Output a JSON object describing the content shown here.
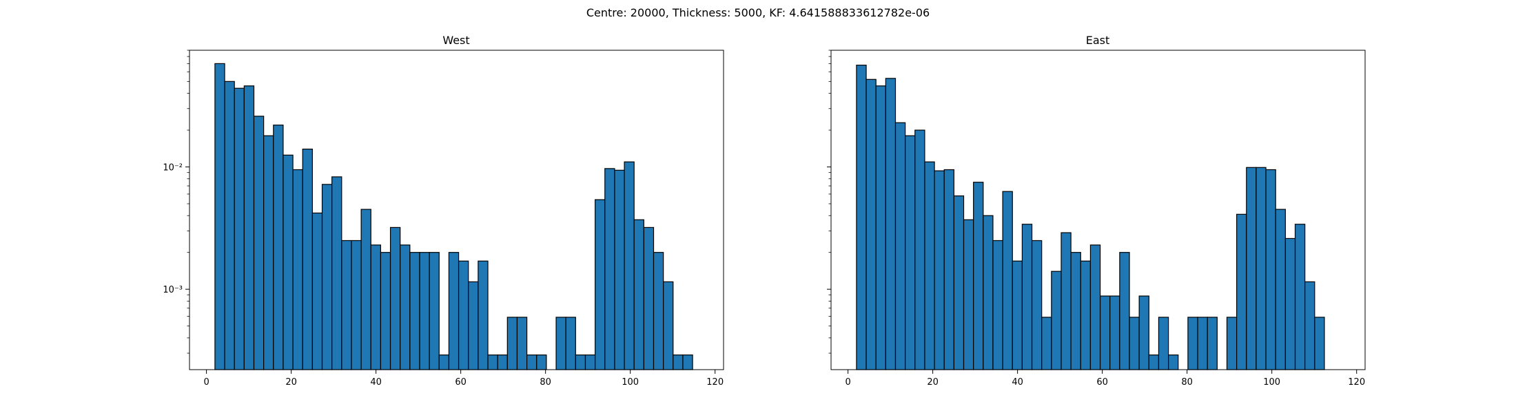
{
  "figure": {
    "suptitle": "Centre: 20000, Thickness: 5000, KF: 4.641588833612782e-06",
    "bar_color": "#1f77b4",
    "edge_color": "#000000"
  },
  "chart_data": [
    {
      "type": "bar",
      "title": "West",
      "xlabel": "",
      "ylabel": "",
      "yscale": "log",
      "xlim": [
        -4,
        122
      ],
      "ylim": [
        0.00022,
        0.09
      ],
      "xticks": [
        0,
        20,
        40,
        60,
        80,
        100,
        120
      ],
      "xtick_labels": [
        "0",
        "20",
        "40",
        "60",
        "80",
        "100",
        "120"
      ],
      "yticks": [
        0.001,
        0.01
      ],
      "ytick_labels": [
        "10⁻³",
        "10⁻²"
      ],
      "bin_edges": [
        2,
        4.3,
        6.6,
        8.9,
        11.2,
        13.5,
        15.8,
        18.1,
        20.4,
        22.7,
        25,
        27.3,
        29.6,
        31.9,
        34.2,
        36.5,
        38.8,
        41.1,
        43.4,
        45.7,
        48,
        50.3,
        52.6,
        54.9,
        57.2,
        59.5,
        61.8,
        64.1,
        66.4,
        68.7,
        71,
        73.3,
        75.6,
        77.9,
        80.2,
        82.5,
        84.8,
        87.1,
        89.4,
        91.7,
        94,
        96.3,
        98.6,
        100.9,
        103.2,
        105.5,
        107.8,
        110.1,
        112.4,
        114.7,
        117
      ],
      "values": [
        0.07,
        0.05,
        0.044,
        0.046,
        0.026,
        0.018,
        0.022,
        0.0125,
        0.0095,
        0.014,
        0.0042,
        0.0072,
        0.0083,
        0.0025,
        0.0025,
        0.0045,
        0.0023,
        0.002,
        0.0032,
        0.0023,
        0.002,
        0.002,
        0.002,
        0.00029,
        0.002,
        0.0017,
        0.00115,
        0.0017,
        0.00029,
        0.00029,
        0.00059,
        0.00059,
        0.00029,
        0.00029,
        0,
        0.00059,
        0.00059,
        0.00029,
        0.00029,
        0.0054,
        0.0097,
        0.0094,
        0.011,
        0.0037,
        0.0032,
        0.002,
        0.00115,
        0.00029,
        0.00029,
        0
      ]
    },
    {
      "type": "bar",
      "title": "East",
      "xlabel": "",
      "ylabel": "",
      "yscale": "log",
      "xlim": [
        -4,
        122
      ],
      "ylim": [
        0.00022,
        0.09
      ],
      "xticks": [
        0,
        20,
        40,
        60,
        80,
        100,
        120
      ],
      "xtick_labels": [
        "0",
        "20",
        "40",
        "60",
        "80",
        "100",
        "120"
      ],
      "yticks": [
        0.001,
        0.01
      ],
      "ytick_labels": [
        "",
        ""
      ],
      "bin_edges": [
        2,
        4.3,
        6.6,
        8.9,
        11.2,
        13.5,
        15.8,
        18.1,
        20.4,
        22.7,
        25,
        27.3,
        29.6,
        31.9,
        34.2,
        36.5,
        38.8,
        41.1,
        43.4,
        45.7,
        48,
        50.3,
        52.6,
        54.9,
        57.2,
        59.5,
        61.8,
        64.1,
        66.4,
        68.7,
        71,
        73.3,
        75.6,
        77.9,
        80.2,
        82.5,
        84.8,
        87.1,
        89.4,
        91.7,
        94,
        96.3,
        98.6,
        100.9,
        103.2,
        105.5,
        107.8,
        110.1,
        112.4,
        114.7,
        117
      ],
      "values": [
        0.068,
        0.052,
        0.046,
        0.053,
        0.023,
        0.018,
        0.02,
        0.011,
        0.0093,
        0.0095,
        0.0058,
        0.0037,
        0.0075,
        0.004,
        0.0025,
        0.0063,
        0.0017,
        0.0034,
        0.0025,
        0.00059,
        0.0014,
        0.0029,
        0.002,
        0.0017,
        0.0023,
        0.00088,
        0.00088,
        0.002,
        0.00059,
        0.00088,
        0.00029,
        0.00059,
        0.00029,
        0,
        0.00059,
        0.00059,
        0.00059,
        0,
        0.00059,
        0.0041,
        0.0099,
        0.0099,
        0.0095,
        0.0045,
        0.0026,
        0.0034,
        0.00115,
        0.00059,
        0,
        0
      ]
    }
  ]
}
